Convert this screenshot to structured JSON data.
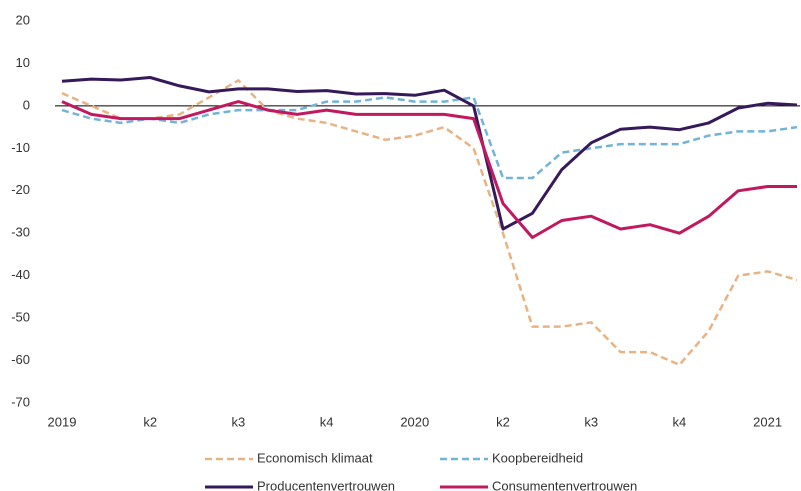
{
  "chart_data": {
    "type": "line",
    "categories": [
      "2019",
      null,
      null,
      "k2",
      null,
      null,
      "k3",
      null,
      null,
      "k4",
      null,
      null,
      "2020",
      null,
      null,
      "k2",
      null,
      null,
      "k3",
      null,
      null,
      "k4",
      null,
      null,
      "2021",
      null
    ],
    "series": [
      {
        "name": "Economisch klimaat",
        "color": "#e9b283",
        "dashed": true,
        "values": [
          3,
          0,
          -3,
          -3,
          -2,
          2,
          6,
          -1,
          -3,
          -4,
          -6,
          -8,
          -7,
          -5,
          -10,
          -30,
          -52,
          -52,
          -51,
          -58,
          -58,
          -61,
          -53,
          -40,
          -39,
          -41
        ]
      },
      {
        "name": "Koopbereidheid",
        "color": "#72b3d8",
        "dashed": true,
        "values": [
          -1,
          -3,
          -4,
          -3,
          -4,
          -2,
          -1,
          -1,
          -1,
          1,
          1,
          2,
          1,
          1,
          2,
          -17,
          -17,
          -11,
          -10,
          -9,
          -9,
          -9,
          -7,
          -6,
          -6,
          -5
        ]
      },
      {
        "name": "Producentenvertrouwen",
        "color": "#36195a",
        "dashed": false,
        "values": [
          5.8,
          6.3,
          6.1,
          6.7,
          4.7,
          3.3,
          4,
          4,
          3.4,
          3.6,
          2.8,
          2.9,
          2.5,
          3.7,
          0,
          -29,
          -25.3,
          -15,
          -8.7,
          -5.5,
          -5,
          -5.6,
          -4,
          -0.5,
          0.6,
          0.2
        ]
      },
      {
        "name": "Consumentenvertrouwen",
        "color": "#c2185f",
        "dashed": false,
        "values": [
          1,
          -2,
          -3,
          -3,
          -3,
          -1,
          1,
          -1,
          -2,
          -1,
          -2,
          -2,
          -2,
          -2,
          -3,
          -23,
          -31,
          -27,
          -26,
          -29,
          -28,
          -30,
          -26,
          -20,
          -19,
          -19
        ]
      }
    ],
    "ylim": [
      -70,
      20
    ],
    "yticks": [
      -70,
      -60,
      -50,
      -40,
      -30,
      -20,
      -10,
      0,
      10,
      20
    ],
    "hline": 0,
    "grid": false
  }
}
